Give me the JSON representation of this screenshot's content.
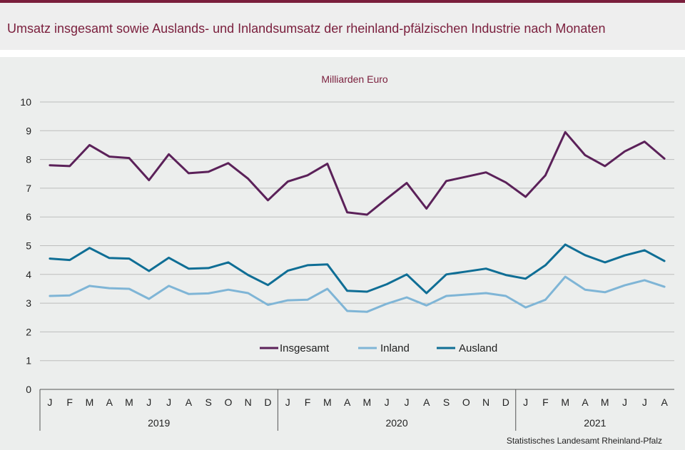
{
  "title": "Umsatz insgesamt sowie Auslands- und Inlandsumsatz der rheinland-pfälzischen Industrie nach Monaten",
  "source": "Statistisches Landesamt Rheinland-Pfalz",
  "chart_data": {
    "type": "line",
    "unit_label": "Milliarden Euro",
    "ylim": [
      0,
      10
    ],
    "yticks": [
      "0",
      "1",
      "2",
      "3",
      "4",
      "5",
      "6",
      "7",
      "8",
      "9",
      "10"
    ],
    "grid": true,
    "legend_placement": "bottom-center",
    "categories": [
      "J",
      "F",
      "M",
      "A",
      "M",
      "J",
      "J",
      "A",
      "S",
      "O",
      "N",
      "D",
      "J",
      "F",
      "M",
      "A",
      "M",
      "J",
      "J",
      "A",
      "S",
      "O",
      "N",
      "D",
      "J",
      "F",
      "M",
      "A",
      "M",
      "J",
      "J",
      "A"
    ],
    "years": [
      {
        "label": "2019",
        "months": 12
      },
      {
        "label": "2020",
        "months": 12
      },
      {
        "label": "2021",
        "months": 8
      }
    ],
    "series": [
      {
        "name": "Insgesamt",
        "color": "#5b2159",
        "values": [
          7.8,
          7.77,
          8.5,
          8.1,
          8.05,
          7.28,
          8.18,
          7.52,
          7.57,
          7.87,
          7.33,
          6.58,
          7.23,
          7.45,
          7.85,
          6.16,
          6.08,
          6.64,
          7.18,
          6.29,
          7.25,
          7.4,
          7.55,
          7.2,
          6.7,
          7.45,
          8.95,
          8.15,
          7.77,
          8.28,
          8.62,
          8.03
        ]
      },
      {
        "name": "Inland",
        "color": "#7fb5d6",
        "values": [
          3.25,
          3.27,
          3.6,
          3.52,
          3.5,
          3.15,
          3.6,
          3.32,
          3.34,
          3.47,
          3.35,
          2.94,
          3.1,
          3.12,
          3.5,
          2.73,
          2.7,
          2.98,
          3.2,
          2.92,
          3.25,
          3.3,
          3.35,
          3.25,
          2.85,
          3.12,
          3.92,
          3.47,
          3.38,
          3.62,
          3.8,
          3.57
        ]
      },
      {
        "name": "Ausland",
        "color": "#0f6e95",
        "values": [
          4.55,
          4.5,
          4.92,
          4.57,
          4.55,
          4.12,
          4.58,
          4.2,
          4.22,
          4.42,
          3.98,
          3.63,
          4.13,
          4.32,
          4.35,
          3.43,
          3.4,
          3.66,
          4.0,
          3.35,
          4.0,
          4.1,
          4.2,
          3.98,
          3.85,
          4.32,
          5.04,
          4.67,
          4.42,
          4.66,
          4.84,
          4.47
        ]
      }
    ]
  }
}
